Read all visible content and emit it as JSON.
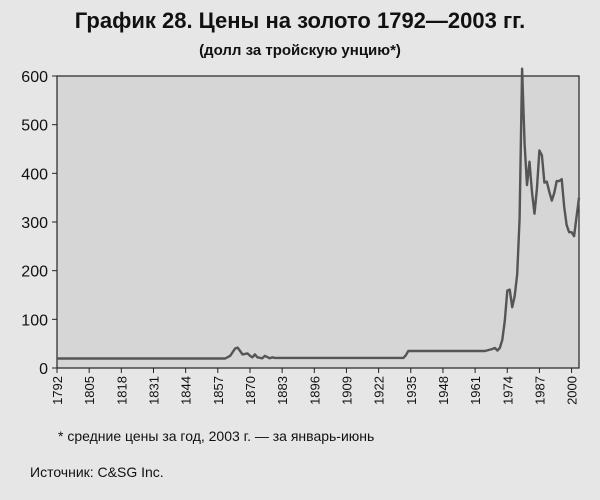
{
  "chart_data": {
    "type": "line",
    "title": "График 28. Цены на золото 1792—2003 гг.",
    "subtitle": "(долл за тройскую унцию*)",
    "xlabel": "",
    "ylabel": "",
    "xlim": [
      1792,
      2003
    ],
    "ylim": [
      0,
      600
    ],
    "y_ticks": [
      0,
      100,
      200,
      300,
      400,
      500,
      600
    ],
    "x_ticks": [
      1792,
      1805,
      1818,
      1831,
      1844,
      1857,
      1870,
      1883,
      1896,
      1909,
      1922,
      1935,
      1948,
      1961,
      1974,
      1987,
      2000
    ],
    "grid": false,
    "series": [
      {
        "color": "#555555",
        "x": [
          1792,
          1860,
          1862,
          1864,
          1865,
          1866,
          1867,
          1869,
          1870,
          1871,
          1872,
          1873,
          1875,
          1876,
          1878,
          1879,
          1880,
          1932,
          1933,
          1934,
          1935,
          1940,
          1945,
          1950,
          1955,
          1965,
          1968,
          1969,
          1970,
          1971,
          1972,
          1973,
          1974,
          1975,
          1976,
          1977,
          1978,
          1979,
          1980,
          1981,
          1982,
          1983,
          1984,
          1985,
          1986,
          1987,
          1988,
          1989,
          1990,
          1991,
          1992,
          1993,
          1994,
          1995,
          1996,
          1997,
          1998,
          1999,
          2000,
          2001,
          2002,
          2003
        ],
        "y": [
          19.5,
          19.5,
          25,
          40,
          42,
          35,
          28,
          30,
          25,
          22,
          28,
          22,
          20,
          25,
          20,
          22,
          20.7,
          20.7,
          26,
          35,
          35,
          35,
          35,
          35,
          35,
          35,
          39,
          41,
          36,
          41,
          58,
          97,
          159,
          161,
          125,
          148,
          193,
          307,
          615,
          460,
          376,
          424,
          361,
          317,
          368,
          447,
          437,
          381,
          383,
          362,
          344,
          360,
          384,
          384,
          388,
          331,
          294,
          279,
          279,
          271,
          310,
          350
        ]
      }
    ]
  },
  "footnote": "* средние цены за год, 2003 г. — за январь-июнь",
  "source": "Источник: C&SG Inc."
}
